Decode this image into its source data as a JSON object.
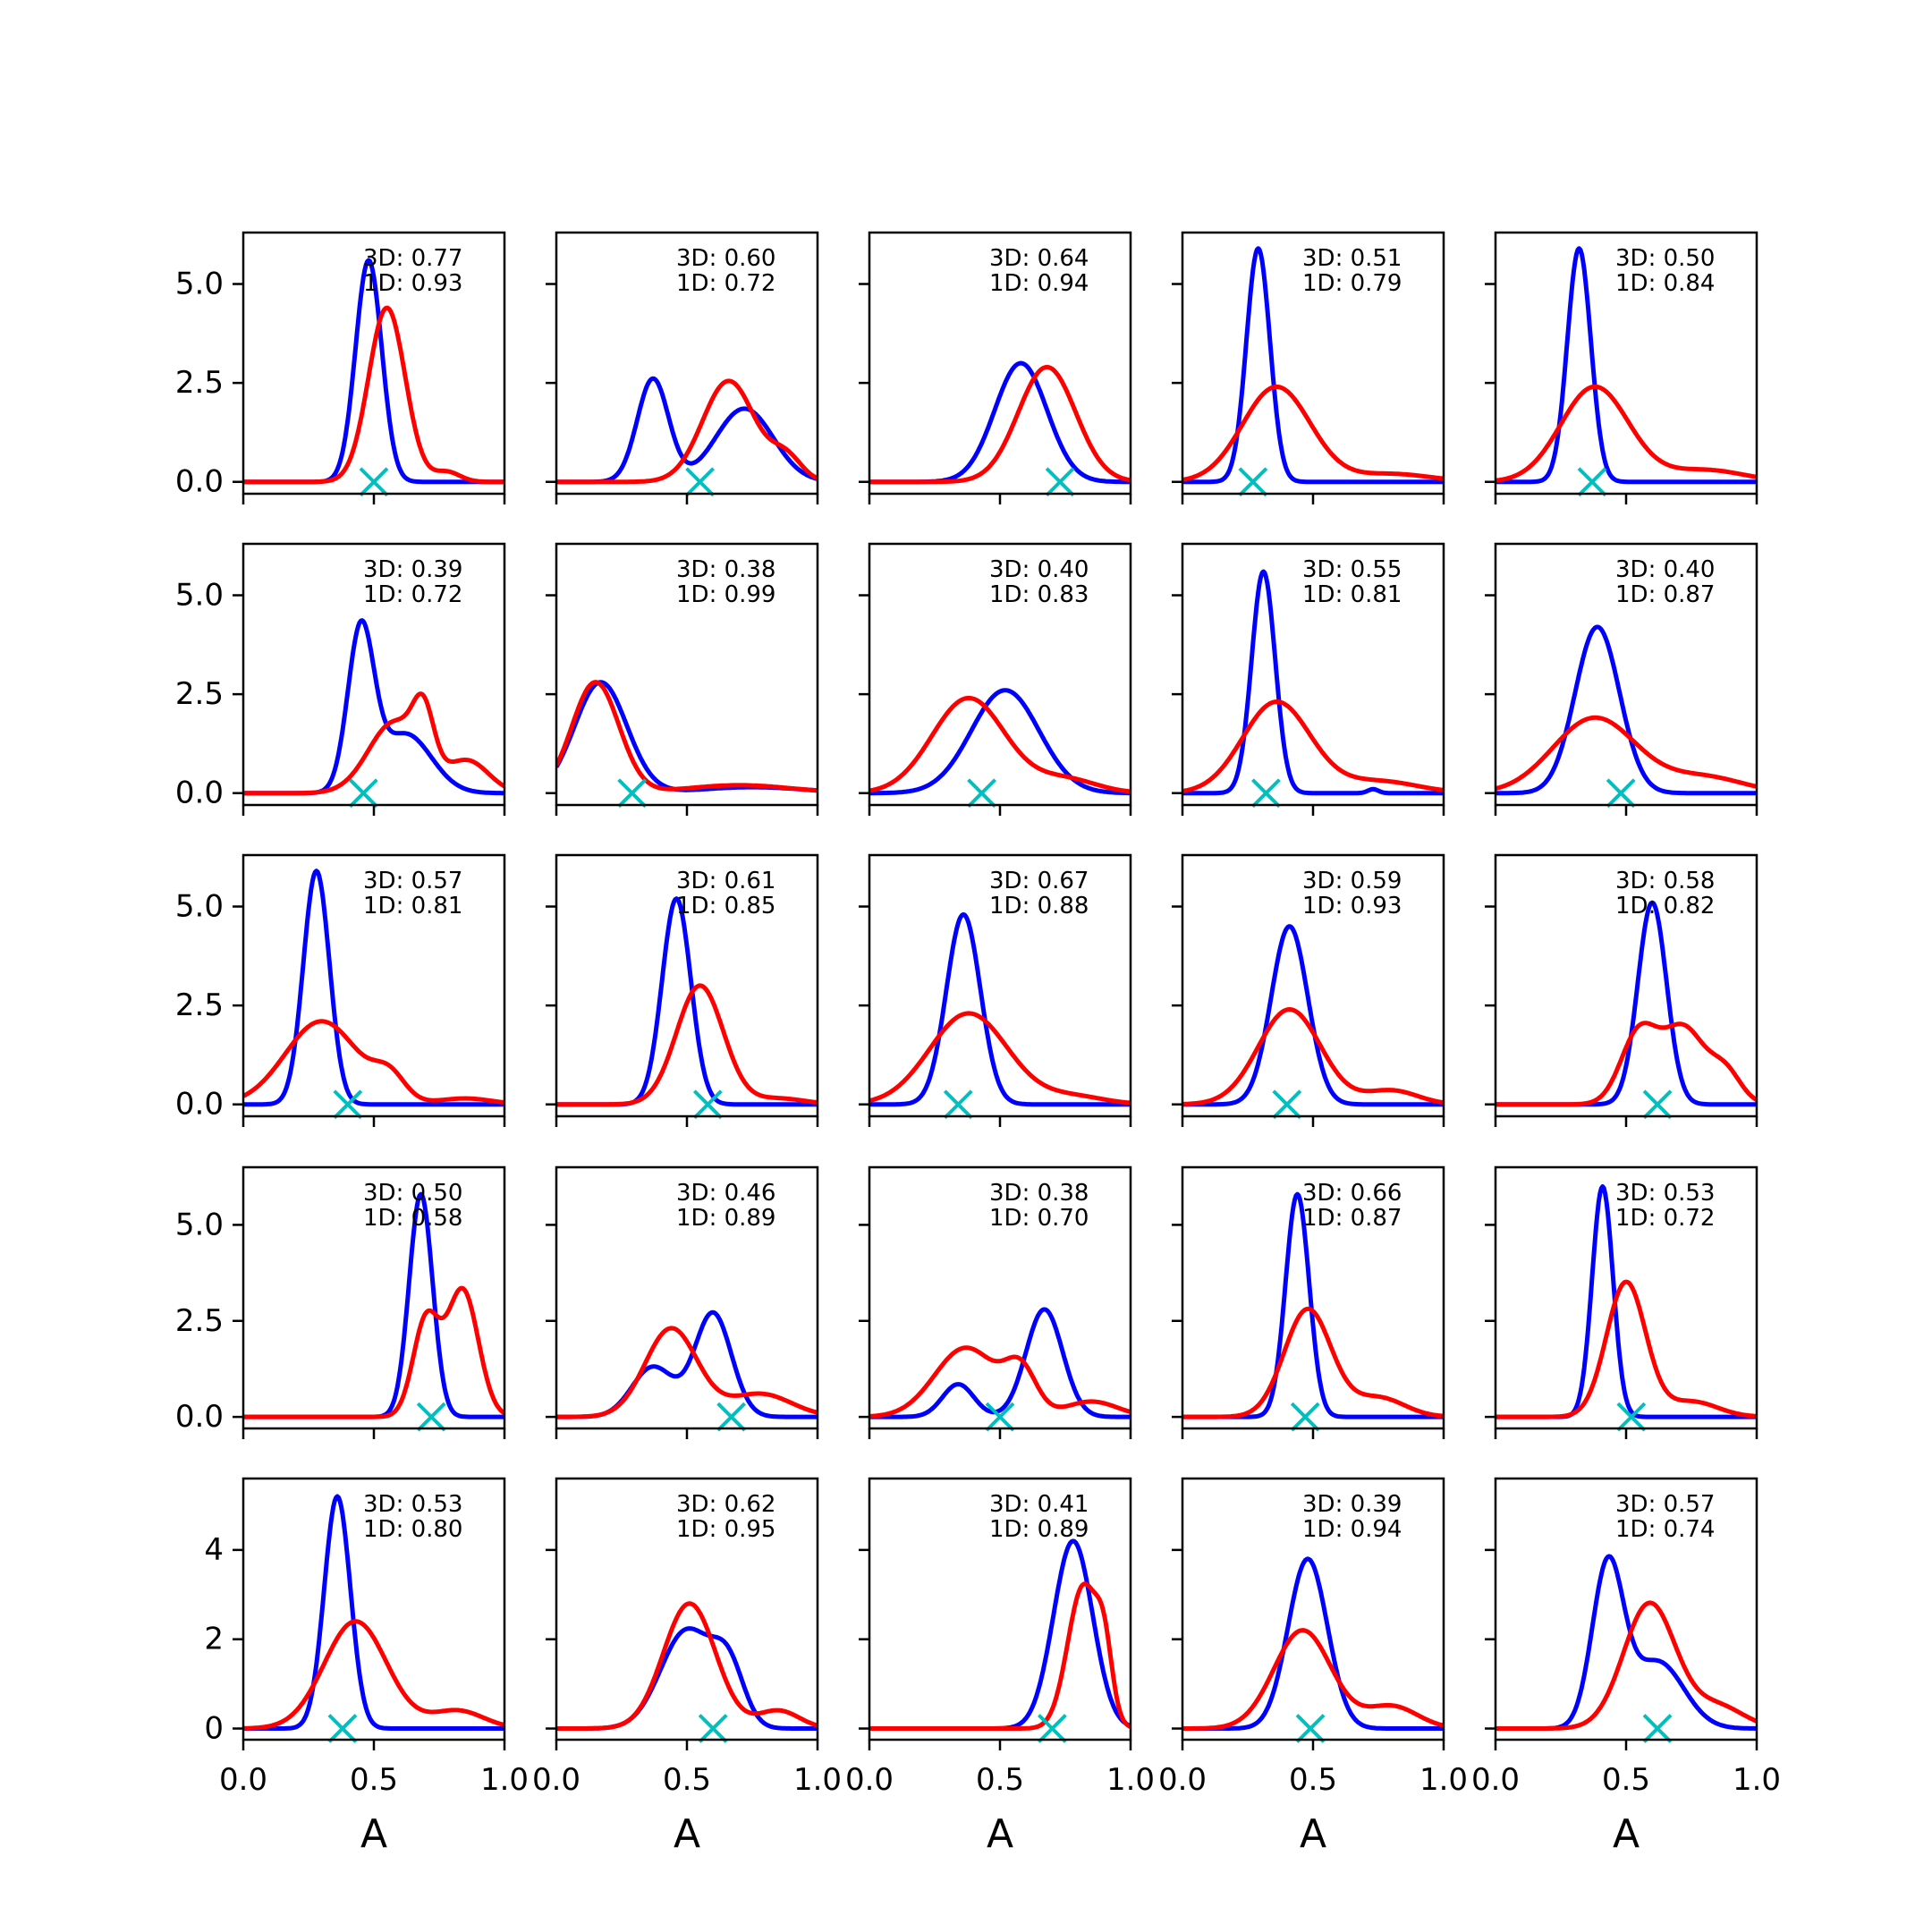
{
  "figure": {
    "colors": {
      "blue": "#0000ff",
      "red": "#ff0000",
      "marker": "#00bfbf",
      "axes": "#000000"
    },
    "xlabel": "A",
    "x_ticks": [
      "0.0",
      "0.5",
      "1.0"
    ],
    "row_y_ticks": [
      [
        "0.0",
        "2.5",
        "5.0"
      ],
      [
        "0.0",
        "2.5",
        "5.0"
      ],
      [
        "0.0",
        "2.5",
        "5.0"
      ],
      [
        "0.0",
        "2.5",
        "5.0"
      ],
      [
        "0",
        "2",
        "4"
      ]
    ],
    "annotation_prefixes": [
      "3D: ",
      "1D: "
    ]
  },
  "chart_data": [
    {
      "type": "line",
      "xlim": [
        0,
        1
      ],
      "ylim": [
        -0.3,
        6.3
      ],
      "label_3d": "3D: 0.77",
      "label_1d": "1D: 0.93",
      "marker_x": 0.5,
      "series": [
        {
          "color": "blue",
          "peaks": [
            {
              "mu": 0.48,
              "sigma": 0.05,
              "h": 5.6
            }
          ]
        },
        {
          "color": "red",
          "peaks": [
            {
              "mu": 0.55,
              "sigma": 0.07,
              "h": 4.4
            },
            {
              "mu": 0.78,
              "sigma": 0.05,
              "h": 0.25
            }
          ]
        }
      ]
    },
    {
      "type": "line",
      "xlim": [
        0,
        1
      ],
      "ylim": [
        -0.3,
        6.3
      ],
      "label_3d": "3D: 0.60",
      "label_1d": "1D: 0.72",
      "marker_x": 0.55,
      "series": [
        {
          "color": "blue",
          "peaks": [
            {
              "mu": 0.37,
              "sigma": 0.06,
              "h": 2.6
            },
            {
              "mu": 0.72,
              "sigma": 0.11,
              "h": 1.85
            }
          ]
        },
        {
          "color": "red",
          "peaks": [
            {
              "mu": 0.66,
              "sigma": 0.1,
              "h": 2.55
            },
            {
              "mu": 0.88,
              "sigma": 0.06,
              "h": 0.6
            }
          ]
        }
      ]
    },
    {
      "type": "line",
      "xlim": [
        0,
        1
      ],
      "ylim": [
        -0.3,
        6.3
      ],
      "label_3d": "3D: 0.64",
      "label_1d": "1D: 0.94",
      "marker_x": 0.73,
      "series": [
        {
          "color": "blue",
          "peaks": [
            {
              "mu": 0.58,
              "sigma": 0.1,
              "h": 3.0
            }
          ]
        },
        {
          "color": "red",
          "peaks": [
            {
              "mu": 0.68,
              "sigma": 0.11,
              "h": 2.9
            }
          ]
        }
      ]
    },
    {
      "type": "line",
      "xlim": [
        0,
        1
      ],
      "ylim": [
        -0.3,
        6.3
      ],
      "label_3d": "3D: 0.51",
      "label_1d": "1D: 0.79",
      "marker_x": 0.27,
      "series": [
        {
          "color": "blue",
          "peaks": [
            {
              "mu": 0.29,
              "sigma": 0.045,
              "h": 5.9
            }
          ]
        },
        {
          "color": "red",
          "peaks": [
            {
              "mu": 0.36,
              "sigma": 0.13,
              "h": 2.4
            },
            {
              "mu": 0.8,
              "sigma": 0.15,
              "h": 0.2
            }
          ]
        }
      ]
    },
    {
      "type": "line",
      "xlim": [
        0,
        1
      ],
      "ylim": [
        -0.3,
        6.3
      ],
      "label_3d": "3D: 0.50",
      "label_1d": "1D: 0.84",
      "marker_x": 0.37,
      "series": [
        {
          "color": "blue",
          "peaks": [
            {
              "mu": 0.32,
              "sigma": 0.045,
              "h": 5.9
            }
          ]
        },
        {
          "color": "red",
          "peaks": [
            {
              "mu": 0.38,
              "sigma": 0.13,
              "h": 2.4
            },
            {
              "mu": 0.8,
              "sigma": 0.15,
              "h": 0.3
            }
          ]
        }
      ]
    },
    {
      "type": "line",
      "xlim": [
        0,
        1
      ],
      "ylim": [
        -0.3,
        6.3
      ],
      "label_3d": "3D: 0.39",
      "label_1d": "1D: 0.72",
      "marker_x": 0.46,
      "series": [
        {
          "color": "blue",
          "peaks": [
            {
              "mu": 0.45,
              "sigma": 0.05,
              "h": 4.0
            },
            {
              "mu": 0.62,
              "sigma": 0.1,
              "h": 1.5
            }
          ]
        },
        {
          "color": "red",
          "peaks": [
            {
              "mu": 0.58,
              "sigma": 0.1,
              "h": 1.8
            },
            {
              "mu": 0.69,
              "sigma": 0.04,
              "h": 1.4
            },
            {
              "mu": 0.86,
              "sigma": 0.08,
              "h": 0.8
            }
          ]
        }
      ]
    },
    {
      "type": "line",
      "xlim": [
        0,
        1
      ],
      "ylim": [
        -0.3,
        6.3
      ],
      "label_3d": "3D: 0.38",
      "label_1d": "1D: 0.99",
      "marker_x": 0.29,
      "series": [
        {
          "color": "blue",
          "peaks": [
            {
              "mu": 0.17,
              "sigma": 0.1,
              "h": 2.8
            },
            {
              "mu": 0.75,
              "sigma": 0.2,
              "h": 0.15
            }
          ]
        },
        {
          "color": "red",
          "peaks": [
            {
              "mu": 0.15,
              "sigma": 0.09,
              "h": 2.8
            },
            {
              "mu": 0.7,
              "sigma": 0.2,
              "h": 0.2
            }
          ]
        }
      ]
    },
    {
      "type": "line",
      "xlim": [
        0,
        1
      ],
      "ylim": [
        -0.3,
        6.3
      ],
      "label_3d": "3D: 0.40",
      "label_1d": "1D: 0.83",
      "marker_x": 0.43,
      "series": [
        {
          "color": "blue",
          "peaks": [
            {
              "mu": 0.52,
              "sigma": 0.13,
              "h": 2.6
            }
          ]
        },
        {
          "color": "red",
          "peaks": [
            {
              "mu": 0.38,
              "sigma": 0.14,
              "h": 2.4
            },
            {
              "mu": 0.75,
              "sigma": 0.12,
              "h": 0.35
            }
          ]
        }
      ]
    },
    {
      "type": "line",
      "xlim": [
        0,
        1
      ],
      "ylim": [
        -0.3,
        6.3
      ],
      "label_3d": "3D: 0.55",
      "label_1d": "1D: 0.81",
      "marker_x": 0.32,
      "series": [
        {
          "color": "blue",
          "peaks": [
            {
              "mu": 0.31,
              "sigma": 0.045,
              "h": 5.6
            },
            {
              "mu": 0.73,
              "sigma": 0.02,
              "h": 0.1
            }
          ]
        },
        {
          "color": "red",
          "peaks": [
            {
              "mu": 0.36,
              "sigma": 0.13,
              "h": 2.3
            },
            {
              "mu": 0.75,
              "sigma": 0.15,
              "h": 0.3
            }
          ]
        }
      ]
    },
    {
      "type": "line",
      "xlim": [
        0,
        1
      ],
      "ylim": [
        -0.3,
        6.3
      ],
      "label_3d": "3D: 0.40",
      "label_1d": "1D: 0.87",
      "marker_x": 0.48,
      "series": [
        {
          "color": "blue",
          "peaks": [
            {
              "mu": 0.39,
              "sigma": 0.085,
              "h": 4.2
            }
          ]
        },
        {
          "color": "red",
          "peaks": [
            {
              "mu": 0.38,
              "sigma": 0.16,
              "h": 1.9
            },
            {
              "mu": 0.8,
              "sigma": 0.15,
              "h": 0.4
            }
          ]
        }
      ]
    },
    {
      "type": "line",
      "xlim": [
        0,
        1
      ],
      "ylim": [
        -0.3,
        6.3
      ],
      "label_3d": "3D: 0.57",
      "label_1d": "1D: 0.81",
      "marker_x": 0.4,
      "series": [
        {
          "color": "blue",
          "peaks": [
            {
              "mu": 0.28,
              "sigma": 0.05,
              "h": 5.9
            }
          ]
        },
        {
          "color": "red",
          "peaks": [
            {
              "mu": 0.3,
              "sigma": 0.14,
              "h": 2.1
            },
            {
              "mu": 0.56,
              "sigma": 0.06,
              "h": 0.6
            },
            {
              "mu": 0.85,
              "sigma": 0.1,
              "h": 0.15
            }
          ]
        }
      ]
    },
    {
      "type": "line",
      "xlim": [
        0,
        1
      ],
      "ylim": [
        -0.3,
        6.3
      ],
      "label_3d": "3D: 0.61",
      "label_1d": "1D: 0.85",
      "marker_x": 0.58,
      "series": [
        {
          "color": "blue",
          "peaks": [
            {
              "mu": 0.46,
              "sigma": 0.055,
              "h": 5.2
            }
          ]
        },
        {
          "color": "red",
          "peaks": [
            {
              "mu": 0.55,
              "sigma": 0.09,
              "h": 3.0
            },
            {
              "mu": 0.85,
              "sigma": 0.1,
              "h": 0.15
            }
          ]
        }
      ]
    },
    {
      "type": "line",
      "xlim": [
        0,
        1
      ],
      "ylim": [
        -0.3,
        6.3
      ],
      "label_3d": "3D: 0.67",
      "label_1d": "1D: 0.88",
      "marker_x": 0.34,
      "series": [
        {
          "color": "blue",
          "peaks": [
            {
              "mu": 0.36,
              "sigma": 0.065,
              "h": 4.8
            }
          ]
        },
        {
          "color": "red",
          "peaks": [
            {
              "mu": 0.38,
              "sigma": 0.15,
              "h": 2.3
            },
            {
              "mu": 0.78,
              "sigma": 0.12,
              "h": 0.2
            }
          ]
        }
      ]
    },
    {
      "type": "line",
      "xlim": [
        0,
        1
      ],
      "ylim": [
        -0.3,
        6.3
      ],
      "label_3d": "3D: 0.59",
      "label_1d": "1D: 0.93",
      "marker_x": 0.4,
      "series": [
        {
          "color": "blue",
          "peaks": [
            {
              "mu": 0.41,
              "sigma": 0.07,
              "h": 4.5
            }
          ]
        },
        {
          "color": "red",
          "peaks": [
            {
              "mu": 0.41,
              "sigma": 0.12,
              "h": 2.4
            },
            {
              "mu": 0.8,
              "sigma": 0.1,
              "h": 0.35
            }
          ]
        }
      ]
    },
    {
      "type": "line",
      "xlim": [
        0,
        1
      ],
      "ylim": [
        -0.3,
        6.3
      ],
      "label_3d": "3D: 0.58",
      "label_1d": "1D: 0.82",
      "marker_x": 0.62,
      "series": [
        {
          "color": "blue",
          "peaks": [
            {
              "mu": 0.6,
              "sigma": 0.055,
              "h": 5.1
            }
          ]
        },
        {
          "color": "red",
          "peaks": [
            {
              "mu": 0.55,
              "sigma": 0.07,
              "h": 1.8
            },
            {
              "mu": 0.72,
              "sigma": 0.08,
              "h": 1.9
            },
            {
              "mu": 0.88,
              "sigma": 0.06,
              "h": 0.8
            }
          ]
        }
      ]
    },
    {
      "type": "line",
      "xlim": [
        0,
        1
      ],
      "ylim": [
        -0.3,
        6.5
      ],
      "label_3d": "3D: 0.50",
      "label_1d": "1D: 0.58",
      "marker_x": 0.72,
      "series": [
        {
          "color": "blue",
          "peaks": [
            {
              "mu": 0.68,
              "sigma": 0.045,
              "h": 5.8
            }
          ]
        },
        {
          "color": "red",
          "peaks": [
            {
              "mu": 0.7,
              "sigma": 0.05,
              "h": 2.5
            },
            {
              "mu": 0.84,
              "sigma": 0.06,
              "h": 3.3
            }
          ]
        }
      ]
    },
    {
      "type": "line",
      "xlim": [
        0,
        1
      ],
      "ylim": [
        -0.3,
        6.5
      ],
      "label_3d": "3D: 0.46",
      "label_1d": "1D: 0.89",
      "marker_x": 0.67,
      "series": [
        {
          "color": "blue",
          "peaks": [
            {
              "mu": 0.37,
              "sigma": 0.08,
              "h": 1.3
            },
            {
              "mu": 0.6,
              "sigma": 0.07,
              "h": 2.7
            }
          ]
        },
        {
          "color": "red",
          "peaks": [
            {
              "mu": 0.44,
              "sigma": 0.1,
              "h": 2.3
            },
            {
              "mu": 0.78,
              "sigma": 0.12,
              "h": 0.6
            }
          ]
        }
      ]
    },
    {
      "type": "line",
      "xlim": [
        0,
        1
      ],
      "ylim": [
        -0.3,
        6.5
      ],
      "label_3d": "3D: 0.38",
      "label_1d": "1D: 0.70",
      "marker_x": 0.5,
      "series": [
        {
          "color": "blue",
          "peaks": [
            {
              "mu": 0.34,
              "sigma": 0.06,
              "h": 0.85
            },
            {
              "mu": 0.67,
              "sigma": 0.07,
              "h": 2.8
            }
          ]
        },
        {
          "color": "red",
          "peaks": [
            {
              "mu": 0.37,
              "sigma": 0.12,
              "h": 1.8
            },
            {
              "mu": 0.58,
              "sigma": 0.06,
              "h": 1.1
            },
            {
              "mu": 0.85,
              "sigma": 0.1,
              "h": 0.4
            }
          ]
        }
      ]
    },
    {
      "type": "line",
      "xlim": [
        0,
        1
      ],
      "ylim": [
        -0.3,
        6.5
      ],
      "label_3d": "3D: 0.66",
      "label_1d": "1D: 0.87",
      "marker_x": 0.47,
      "series": [
        {
          "color": "blue",
          "peaks": [
            {
              "mu": 0.44,
              "sigma": 0.045,
              "h": 5.8
            }
          ]
        },
        {
          "color": "red",
          "peaks": [
            {
              "mu": 0.48,
              "sigma": 0.09,
              "h": 2.8
            },
            {
              "mu": 0.75,
              "sigma": 0.1,
              "h": 0.5
            }
          ]
        }
      ]
    },
    {
      "type": "line",
      "xlim": [
        0,
        1
      ],
      "ylim": [
        -0.3,
        6.5
      ],
      "label_3d": "3D: 0.53",
      "label_1d": "1D: 0.72",
      "marker_x": 0.52,
      "series": [
        {
          "color": "blue",
          "peaks": [
            {
              "mu": 0.41,
              "sigma": 0.04,
              "h": 6.0
            }
          ]
        },
        {
          "color": "red",
          "peaks": [
            {
              "mu": 0.5,
              "sigma": 0.075,
              "h": 3.5
            },
            {
              "mu": 0.75,
              "sigma": 0.1,
              "h": 0.4
            }
          ]
        }
      ]
    },
    {
      "type": "line",
      "xlim": [
        0,
        1
      ],
      "ylim": [
        -0.25,
        5.6
      ],
      "label_3d": "3D: 0.53",
      "label_1d": "1D: 0.80",
      "marker_x": 0.38,
      "series": [
        {
          "color": "blue",
          "peaks": [
            {
              "mu": 0.36,
              "sigma": 0.05,
              "h": 5.2
            }
          ]
        },
        {
          "color": "red",
          "peaks": [
            {
              "mu": 0.43,
              "sigma": 0.12,
              "h": 2.4
            },
            {
              "mu": 0.82,
              "sigma": 0.1,
              "h": 0.4
            }
          ]
        }
      ]
    },
    {
      "type": "line",
      "xlim": [
        0,
        1
      ],
      "ylim": [
        -0.25,
        5.6
      ],
      "label_3d": "3D: 0.62",
      "label_1d": "1D: 0.95",
      "marker_x": 0.6,
      "series": [
        {
          "color": "blue",
          "peaks": [
            {
              "mu": 0.5,
              "sigma": 0.1,
              "h": 2.2
            },
            {
              "mu": 0.66,
              "sigma": 0.06,
              "h": 1.2
            }
          ]
        },
        {
          "color": "red",
          "peaks": [
            {
              "mu": 0.51,
              "sigma": 0.1,
              "h": 2.8
            },
            {
              "mu": 0.85,
              "sigma": 0.08,
              "h": 0.4
            }
          ]
        }
      ]
    },
    {
      "type": "line",
      "xlim": [
        0,
        1
      ],
      "ylim": [
        -0.25,
        5.6
      ],
      "label_3d": "3D: 0.41",
      "label_1d": "1D: 0.89",
      "marker_x": 0.7,
      "series": [
        {
          "color": "blue",
          "peaks": [
            {
              "mu": 0.78,
              "sigma": 0.075,
              "h": 4.2
            }
          ]
        },
        {
          "color": "red",
          "peaks": [
            {
              "mu": 0.82,
              "sigma": 0.06,
              "h": 3.2
            },
            {
              "mu": 0.9,
              "sigma": 0.03,
              "h": 1.2
            }
          ]
        }
      ]
    },
    {
      "type": "line",
      "xlim": [
        0,
        1
      ],
      "ylim": [
        -0.25,
        5.6
      ],
      "label_3d": "3D: 0.39",
      "label_1d": "1D: 0.94",
      "marker_x": 0.49,
      "series": [
        {
          "color": "blue",
          "peaks": [
            {
              "mu": 0.48,
              "sigma": 0.075,
              "h": 3.8
            }
          ]
        },
        {
          "color": "red",
          "peaks": [
            {
              "mu": 0.46,
              "sigma": 0.11,
              "h": 2.2
            },
            {
              "mu": 0.8,
              "sigma": 0.1,
              "h": 0.5
            }
          ]
        }
      ]
    },
    {
      "type": "line",
      "xlim": [
        0,
        1
      ],
      "ylim": [
        -0.25,
        5.6
      ],
      "label_3d": "3D: 0.57",
      "label_1d": "1D: 0.74",
      "marker_x": 0.62,
      "series": [
        {
          "color": "blue",
          "peaks": [
            {
              "mu": 0.43,
              "sigma": 0.06,
              "h": 3.6
            },
            {
              "mu": 0.62,
              "sigma": 0.1,
              "h": 1.5
            }
          ]
        },
        {
          "color": "red",
          "peaks": [
            {
              "mu": 0.59,
              "sigma": 0.1,
              "h": 2.8
            },
            {
              "mu": 0.85,
              "sigma": 0.1,
              "h": 0.5
            }
          ]
        }
      ]
    }
  ]
}
